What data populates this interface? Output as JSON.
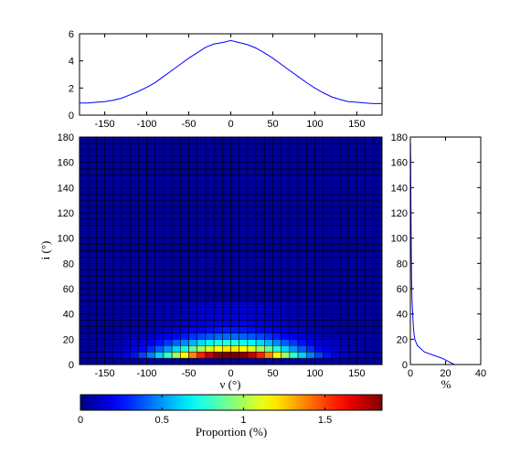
{
  "chart_data": [
    {
      "id": "top-marginal",
      "type": "line",
      "x": [
        -180,
        -170,
        -160,
        -150,
        -140,
        -130,
        -120,
        -110,
        -100,
        -90,
        -80,
        -70,
        -60,
        -50,
        -40,
        -30,
        -20,
        -10,
        0,
        10,
        20,
        30,
        40,
        50,
        60,
        70,
        80,
        90,
        100,
        110,
        120,
        130,
        140,
        150,
        160,
        170,
        180
      ],
      "y": [
        0.9,
        0.9,
        0.95,
        1.0,
        1.1,
        1.25,
        1.5,
        1.75,
        2.05,
        2.4,
        2.85,
        3.3,
        3.75,
        4.2,
        4.6,
        5.0,
        5.25,
        5.35,
        5.5,
        5.35,
        5.2,
        4.95,
        4.6,
        4.2,
        3.75,
        3.3,
        2.85,
        2.4,
        2.0,
        1.65,
        1.35,
        1.15,
        1.0,
        0.95,
        0.9,
        0.85,
        0.85
      ],
      "xlim": [
        -180,
        180
      ],
      "ylim": [
        0,
        6
      ],
      "xticks": [
        -150,
        -100,
        -50,
        0,
        50,
        100,
        150
      ],
      "yticks": [
        0,
        2,
        4,
        6
      ],
      "line_color": "#0000ff",
      "grid": false
    },
    {
      "id": "main-heatmap",
      "type": "heatmap",
      "x_range": [
        -180,
        180
      ],
      "y_range": [
        0,
        180
      ],
      "x_bins": 36,
      "y_bins": 36,
      "value_model": {
        "kind": "separable",
        "peak": 1.85,
        "ridge_row_centers": [
          7.5,
          12.5,
          17.5,
          22.5,
          27.5,
          32.5,
          37.5,
          42.5,
          47.5
        ],
        "ridge_row_weights": [
          1.0,
          0.62,
          0.38,
          0.2,
          0.12,
          0.08,
          0.06,
          0.05,
          0.045
        ],
        "column_sigma_deg": 55,
        "background": 0.05
      },
      "xticks": [
        -150,
        -100,
        -50,
        0,
        50,
        100,
        150
      ],
      "yticks": [
        0,
        20,
        40,
        60,
        80,
        100,
        120,
        140,
        160,
        180
      ],
      "xlabel": "ν (°)",
      "ylabel": "i (°)",
      "colormap": "jet",
      "cell_edge_color": "#000000"
    },
    {
      "id": "right-marginal",
      "type": "line",
      "y": [
        0,
        5,
        10,
        15,
        20,
        25,
        30,
        40,
        50,
        60,
        70,
        80,
        90,
        100,
        110,
        120,
        130,
        140,
        150,
        160,
        165,
        170,
        175
      ],
      "x": [
        25,
        18,
        8,
        4,
        2.5,
        2.0,
        1.7,
        1.3,
        1.0,
        0.8,
        0.7,
        0.6,
        0.5,
        0.45,
        0.4,
        0.35,
        0.3,
        0.25,
        0.2,
        0.2,
        0.15,
        0.1,
        0.1
      ],
      "xlim": [
        0,
        40
      ],
      "ylim": [
        0,
        180
      ],
      "xticks": [
        0,
        20,
        40
      ],
      "yticks": [
        0,
        20,
        40,
        60,
        80,
        100,
        120,
        140,
        160,
        180
      ],
      "xlabel": "%",
      "line_color": "#0000ff",
      "grid": false
    },
    {
      "id": "colorbar",
      "type": "colorbar",
      "range": [
        0,
        1.85
      ],
      "ticks": [
        0,
        0.5,
        1,
        1.5
      ],
      "label": "Proportion (%)",
      "colormap": "jet"
    }
  ]
}
